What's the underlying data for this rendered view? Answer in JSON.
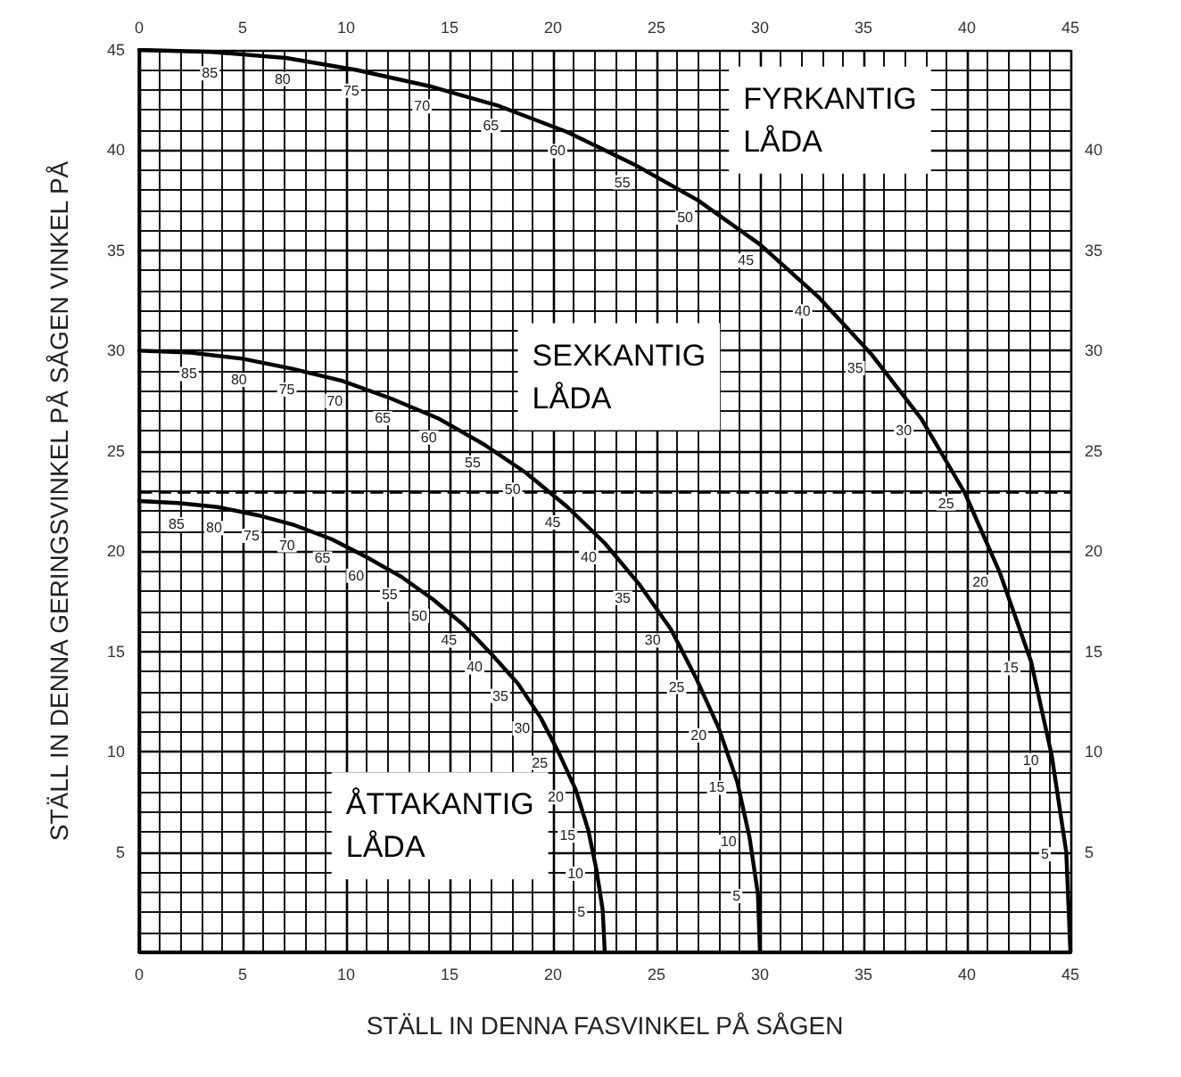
{
  "chart_data": {
    "type": "line",
    "xlabel": "STÄLL IN DENNA FASVINKEL PÅ SÅGEN",
    "ylabel": "STÄLL IN DENNA GERINGSVINKEL PÅ SÅGEN VINKEL PÅ",
    "xlim": [
      0,
      45
    ],
    "xticks": [
      0,
      5,
      10,
      15,
      20,
      25,
      30,
      35,
      40,
      45
    ],
    "ylim": [
      0,
      45
    ],
    "yticks": [
      5,
      10,
      15,
      20,
      25,
      30,
      35,
      40,
      45
    ],
    "x2lim": [
      0,
      45
    ],
    "x2ticks": [
      0,
      5,
      10,
      15,
      20,
      25,
      30,
      35,
      40,
      45
    ],
    "y2lim": [
      0,
      45
    ],
    "y2ticks": [
      5,
      10,
      15,
      20,
      25,
      30,
      35,
      40
    ],
    "grid": true,
    "marker": "none",
    "line_style": "solid",
    "series": [
      {
        "name": "FYRKANTIG LÅDA",
        "color": "#000000",
        "x": [
          0,
          3.5,
          7.1,
          10.5,
          14.0,
          17.4,
          20.7,
          23.9,
          27.0,
          30.0,
          32.8,
          35.4,
          37.8,
          39.9,
          41.6,
          43.1,
          44.1,
          44.8,
          45
        ],
        "values": [
          45,
          44.9,
          44.6,
          44.0,
          43.2,
          42.2,
          40.9,
          39.3,
          37.5,
          35.3,
          32.7,
          29.8,
          26.6,
          22.9,
          18.9,
          14.5,
          9.8,
          5.0,
          0
        ]
      },
      {
        "name": "SEXKANTIG LÅDA",
        "color": "#000000",
        "x": [
          0,
          2.5,
          5.0,
          7.4,
          9.8,
          12.2,
          14.5,
          16.7,
          18.7,
          20.7,
          22.5,
          24.2,
          25.7,
          26.9,
          28.0,
          28.9,
          29.5,
          29.9,
          30
        ],
        "values": [
          30,
          29.9,
          29.6,
          29.1,
          28.5,
          27.6,
          26.6,
          25.3,
          23.9,
          22.2,
          20.4,
          18.3,
          16.1,
          13.7,
          11.2,
          8.5,
          5.7,
          2.9,
          0
        ]
      },
      {
        "name": "ÅTTAKANTIG LÅDA",
        "color": "#000000",
        "x": [
          0,
          1.9,
          3.8,
          5.7,
          7.5,
          9.3,
          11.0,
          12.7,
          14.2,
          15.7,
          17.0,
          18.3,
          19.4,
          20.3,
          21.1,
          21.7,
          22.1,
          22.4,
          22.5
        ],
        "values": [
          22.5,
          22.4,
          22.2,
          21.8,
          21.3,
          20.6,
          19.7,
          18.7,
          17.6,
          16.3,
          14.9,
          13.4,
          11.7,
          9.9,
          8.1,
          6.1,
          4.1,
          2.1,
          0
        ]
      }
    ],
    "ref_lines": [
      {
        "axis": "y",
        "value": 23,
        "color": "#000000",
        "line_style": "dashed"
      }
    ],
    "annotations": [
      {
        "text": "85",
        "x": 3.5,
        "y": 44.9
      },
      {
        "text": "80",
        "x": 7.1,
        "y": 44.6
      },
      {
        "text": "75",
        "x": 10.5,
        "y": 44.0
      },
      {
        "text": "70",
        "x": 14.0,
        "y": 43.2
      },
      {
        "text": "65",
        "x": 17.4,
        "y": 42.2
      },
      {
        "text": "60",
        "x": 20.7,
        "y": 40.9
      },
      {
        "text": "55",
        "x": 23.9,
        "y": 39.3
      },
      {
        "text": "50",
        "x": 27.0,
        "y": 37.5
      },
      {
        "text": "45",
        "x": 30.0,
        "y": 35.3
      },
      {
        "text": "40",
        "x": 32.8,
        "y": 32.7
      },
      {
        "text": "35",
        "x": 35.4,
        "y": 29.8
      },
      {
        "text": "30",
        "x": 37.8,
        "y": 26.6
      },
      {
        "text": "25",
        "x": 39.9,
        "y": 22.9
      },
      {
        "text": "20",
        "x": 41.6,
        "y": 18.9
      },
      {
        "text": "15",
        "x": 43.1,
        "y": 14.5
      },
      {
        "text": "10",
        "x": 44.1,
        "y": 9.8
      },
      {
        "text": "5",
        "x": 44.8,
        "y": 5.0
      },
      {
        "text": "85",
        "x": 2.5,
        "y": 29.9
      },
      {
        "text": "80",
        "x": 5.0,
        "y": 29.6
      },
      {
        "text": "75",
        "x": 7.4,
        "y": 29.1
      },
      {
        "text": "70",
        "x": 9.8,
        "y": 28.5
      },
      {
        "text": "65",
        "x": 12.2,
        "y": 27.6
      },
      {
        "text": "60",
        "x": 14.5,
        "y": 26.6
      },
      {
        "text": "55",
        "x": 16.7,
        "y": 25.3
      },
      {
        "text": "50",
        "x": 18.7,
        "y": 23.9
      },
      {
        "text": "45",
        "x": 20.7,
        "y": 22.2
      },
      {
        "text": "40",
        "x": 22.5,
        "y": 20.4
      },
      {
        "text": "35",
        "x": 24.2,
        "y": 18.3
      },
      {
        "text": "30",
        "x": 25.7,
        "y": 16.1
      },
      {
        "text": "25",
        "x": 26.9,
        "y": 13.7
      },
      {
        "text": "20",
        "x": 28.0,
        "y": 11.2
      },
      {
        "text": "15",
        "x": 28.9,
        "y": 8.5
      },
      {
        "text": "10",
        "x": 29.5,
        "y": 5.7
      },
      {
        "text": "5",
        "x": 29.9,
        "y": 2.9
      },
      {
        "text": "85",
        "x": 1.9,
        "y": 22.4
      },
      {
        "text": "80",
        "x": 3.8,
        "y": 22.2
      },
      {
        "text": "75",
        "x": 5.7,
        "y": 21.8
      },
      {
        "text": "70",
        "x": 7.5,
        "y": 21.3
      },
      {
        "text": "65",
        "x": 9.3,
        "y": 20.6
      },
      {
        "text": "60",
        "x": 11.0,
        "y": 19.7
      },
      {
        "text": "55",
        "x": 12.7,
        "y": 18.7
      },
      {
        "text": "50",
        "x": 14.2,
        "y": 17.6
      },
      {
        "text": "45",
        "x": 15.7,
        "y": 16.3
      },
      {
        "text": "40",
        "x": 17.0,
        "y": 14.9
      },
      {
        "text": "35",
        "x": 18.3,
        "y": 13.4
      },
      {
        "text": "30",
        "x": 19.4,
        "y": 11.7
      },
      {
        "text": "25",
        "x": 20.3,
        "y": 9.9
      },
      {
        "text": "20",
        "x": 21.1,
        "y": 8.1
      },
      {
        "text": "15",
        "x": 21.7,
        "y": 6.1
      },
      {
        "text": "10",
        "x": 22.1,
        "y": 4.1
      },
      {
        "text": "5",
        "x": 22.4,
        "y": 2.1
      }
    ]
  }
}
